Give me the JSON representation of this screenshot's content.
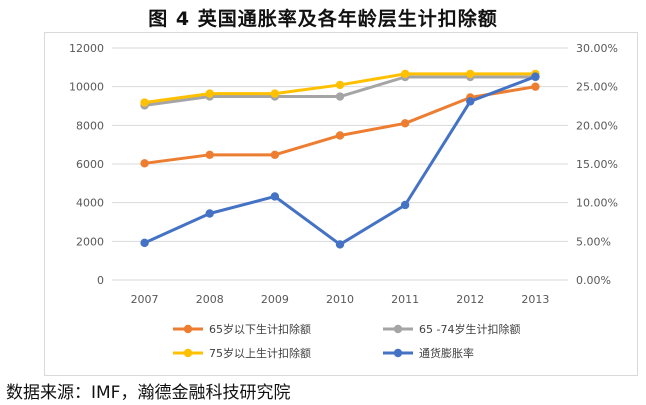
{
  "title": "图 4 英国通胀率及各年龄层生计扣除额",
  "source": "数据来源：IMF，瀚德金融科技研究院",
  "chart_data": {
    "type": "line",
    "x": [
      "2007",
      "2008",
      "2009",
      "2010",
      "2011",
      "2012",
      "2013"
    ],
    "ylim": [
      0,
      12000
    ],
    "yticks": [
      "0",
      "2000",
      "4000",
      "6000",
      "8000",
      "10000",
      "12000"
    ],
    "y2lim": [
      0,
      30
    ],
    "y2ticks": [
      "0.00%",
      "5.00%",
      "10.00%",
      "15.00%",
      "20.00%",
      "25.00%",
      "30.00%"
    ],
    "grid": true,
    "legend_position": "bottom",
    "series": [
      {
        "name": "65岁以下生计扣除额",
        "axis": "left",
        "color": "#ED7D31",
        "values": [
          6035,
          6475,
          6475,
          7475,
          8105,
          9440,
          10000
        ]
      },
      {
        "name": "65 -74岁生计扣除额",
        "axis": "left",
        "color": "#A5A5A5",
        "values": [
          9030,
          9490,
          9490,
          9490,
          10500,
          10500,
          10500
        ]
      },
      {
        "name": "75岁以上生计扣除额",
        "axis": "left",
        "color": "#FFC000",
        "values": [
          9180,
          9640,
          9640,
          10090,
          10660,
          10660,
          10660
        ]
      },
      {
        "name": "通货膨胀率",
        "axis": "right",
        "color": "#4472C4",
        "values": [
          4.8,
          8.6,
          10.8,
          4.6,
          9.7,
          23.1,
          26.3
        ]
      }
    ]
  }
}
